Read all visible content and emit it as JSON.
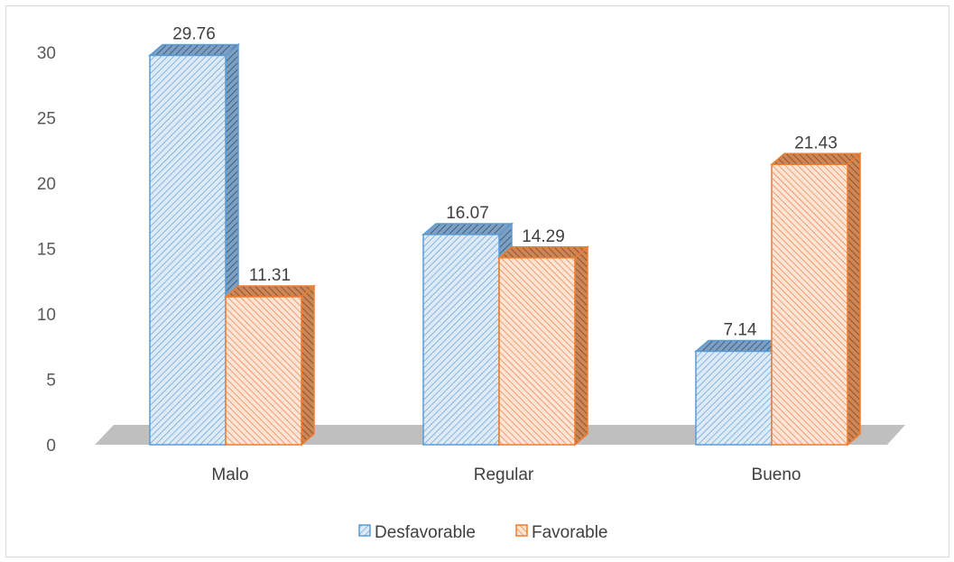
{
  "chart_data": {
    "type": "bar",
    "title": "",
    "xlabel": "",
    "ylabel": "",
    "categories": [
      "Malo",
      "Regular",
      "Bueno"
    ],
    "series": [
      {
        "name": "Desfavorable",
        "values": [
          29.76,
          16.07,
          7.14
        ],
        "color": "#5b9bd5",
        "fill": "#deebf7"
      },
      {
        "name": "Favorable",
        "values": [
          11.31,
          14.29,
          21.43
        ],
        "color": "#ed7d31",
        "fill": "#fbe5d6"
      }
    ],
    "data_labels": [
      [
        "29.76",
        "16.07",
        "7.14"
      ],
      [
        "11.31",
        "14.29",
        "21.43"
      ]
    ],
    "ylim": [
      0,
      30
    ],
    "yticks": [
      0,
      5,
      10,
      15,
      20,
      25,
      30
    ],
    "ytick_labels": [
      "0",
      "5",
      "10",
      "15",
      "20",
      "25",
      "30"
    ],
    "grid": false,
    "legend_position": "bottom",
    "style": "3d-clustered-column-hatched",
    "floor_color": "#bfbfbf"
  }
}
